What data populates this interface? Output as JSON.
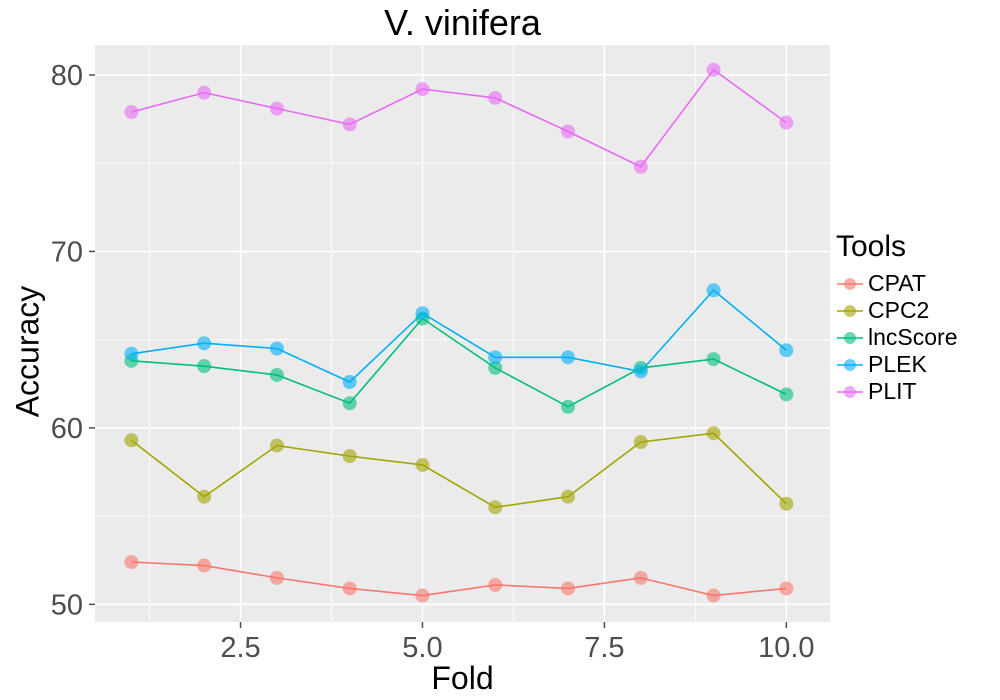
{
  "chart_data": {
    "type": "line",
    "title": "V. vinifera",
    "xlabel": "Fold",
    "ylabel": "Accuracy",
    "legend_title": "Tools",
    "legend_position": "right",
    "grid": true,
    "panel_bg": "#EBEBEB",
    "grid_color": "#FFFFFF",
    "tick_text_color": "#4D4D4D",
    "xlim": [
      0.5,
      10.6
    ],
    "ylim": [
      49.0,
      81.7
    ],
    "x": [
      1,
      2,
      3,
      4,
      5,
      6,
      7,
      8,
      9,
      10
    ],
    "x_ticks": [
      2.5,
      5.0,
      7.5,
      10.0
    ],
    "x_tick_labels": [
      "2.5",
      "5.0",
      "7.5",
      "10.0"
    ],
    "x_minor_ticks": [
      1.25,
      3.75,
      6.25,
      8.75
    ],
    "y_ticks": [
      50,
      60,
      70,
      80
    ],
    "y_tick_labels": [
      "50",
      "60",
      "70",
      "80"
    ],
    "y_minor_ticks": [
      55,
      65,
      75
    ],
    "series": [
      {
        "name": "CPAT",
        "color": "#F8766D",
        "values": [
          52.4,
          52.2,
          51.5,
          50.9,
          50.5,
          51.1,
          50.9,
          51.5,
          50.5,
          50.9
        ]
      },
      {
        "name": "CPC2",
        "color": "#A3A500",
        "values": [
          59.3,
          56.1,
          59.0,
          58.4,
          57.9,
          55.5,
          56.1,
          59.2,
          59.7,
          55.7
        ]
      },
      {
        "name": "lncScore",
        "color": "#00BF7D",
        "values": [
          63.8,
          63.5,
          63.0,
          61.4,
          66.2,
          63.4,
          61.2,
          63.4,
          63.9,
          61.9
        ]
      },
      {
        "name": "PLEK",
        "color": "#00B0F6",
        "values": [
          64.2,
          64.8,
          64.5,
          62.6,
          66.5,
          64.0,
          64.0,
          63.2,
          67.8,
          64.4
        ]
      },
      {
        "name": "PLIT",
        "color": "#E76BF3",
        "values": [
          77.9,
          79.0,
          78.1,
          77.2,
          79.2,
          78.7,
          76.8,
          74.8,
          80.3,
          77.3
        ]
      }
    ]
  }
}
